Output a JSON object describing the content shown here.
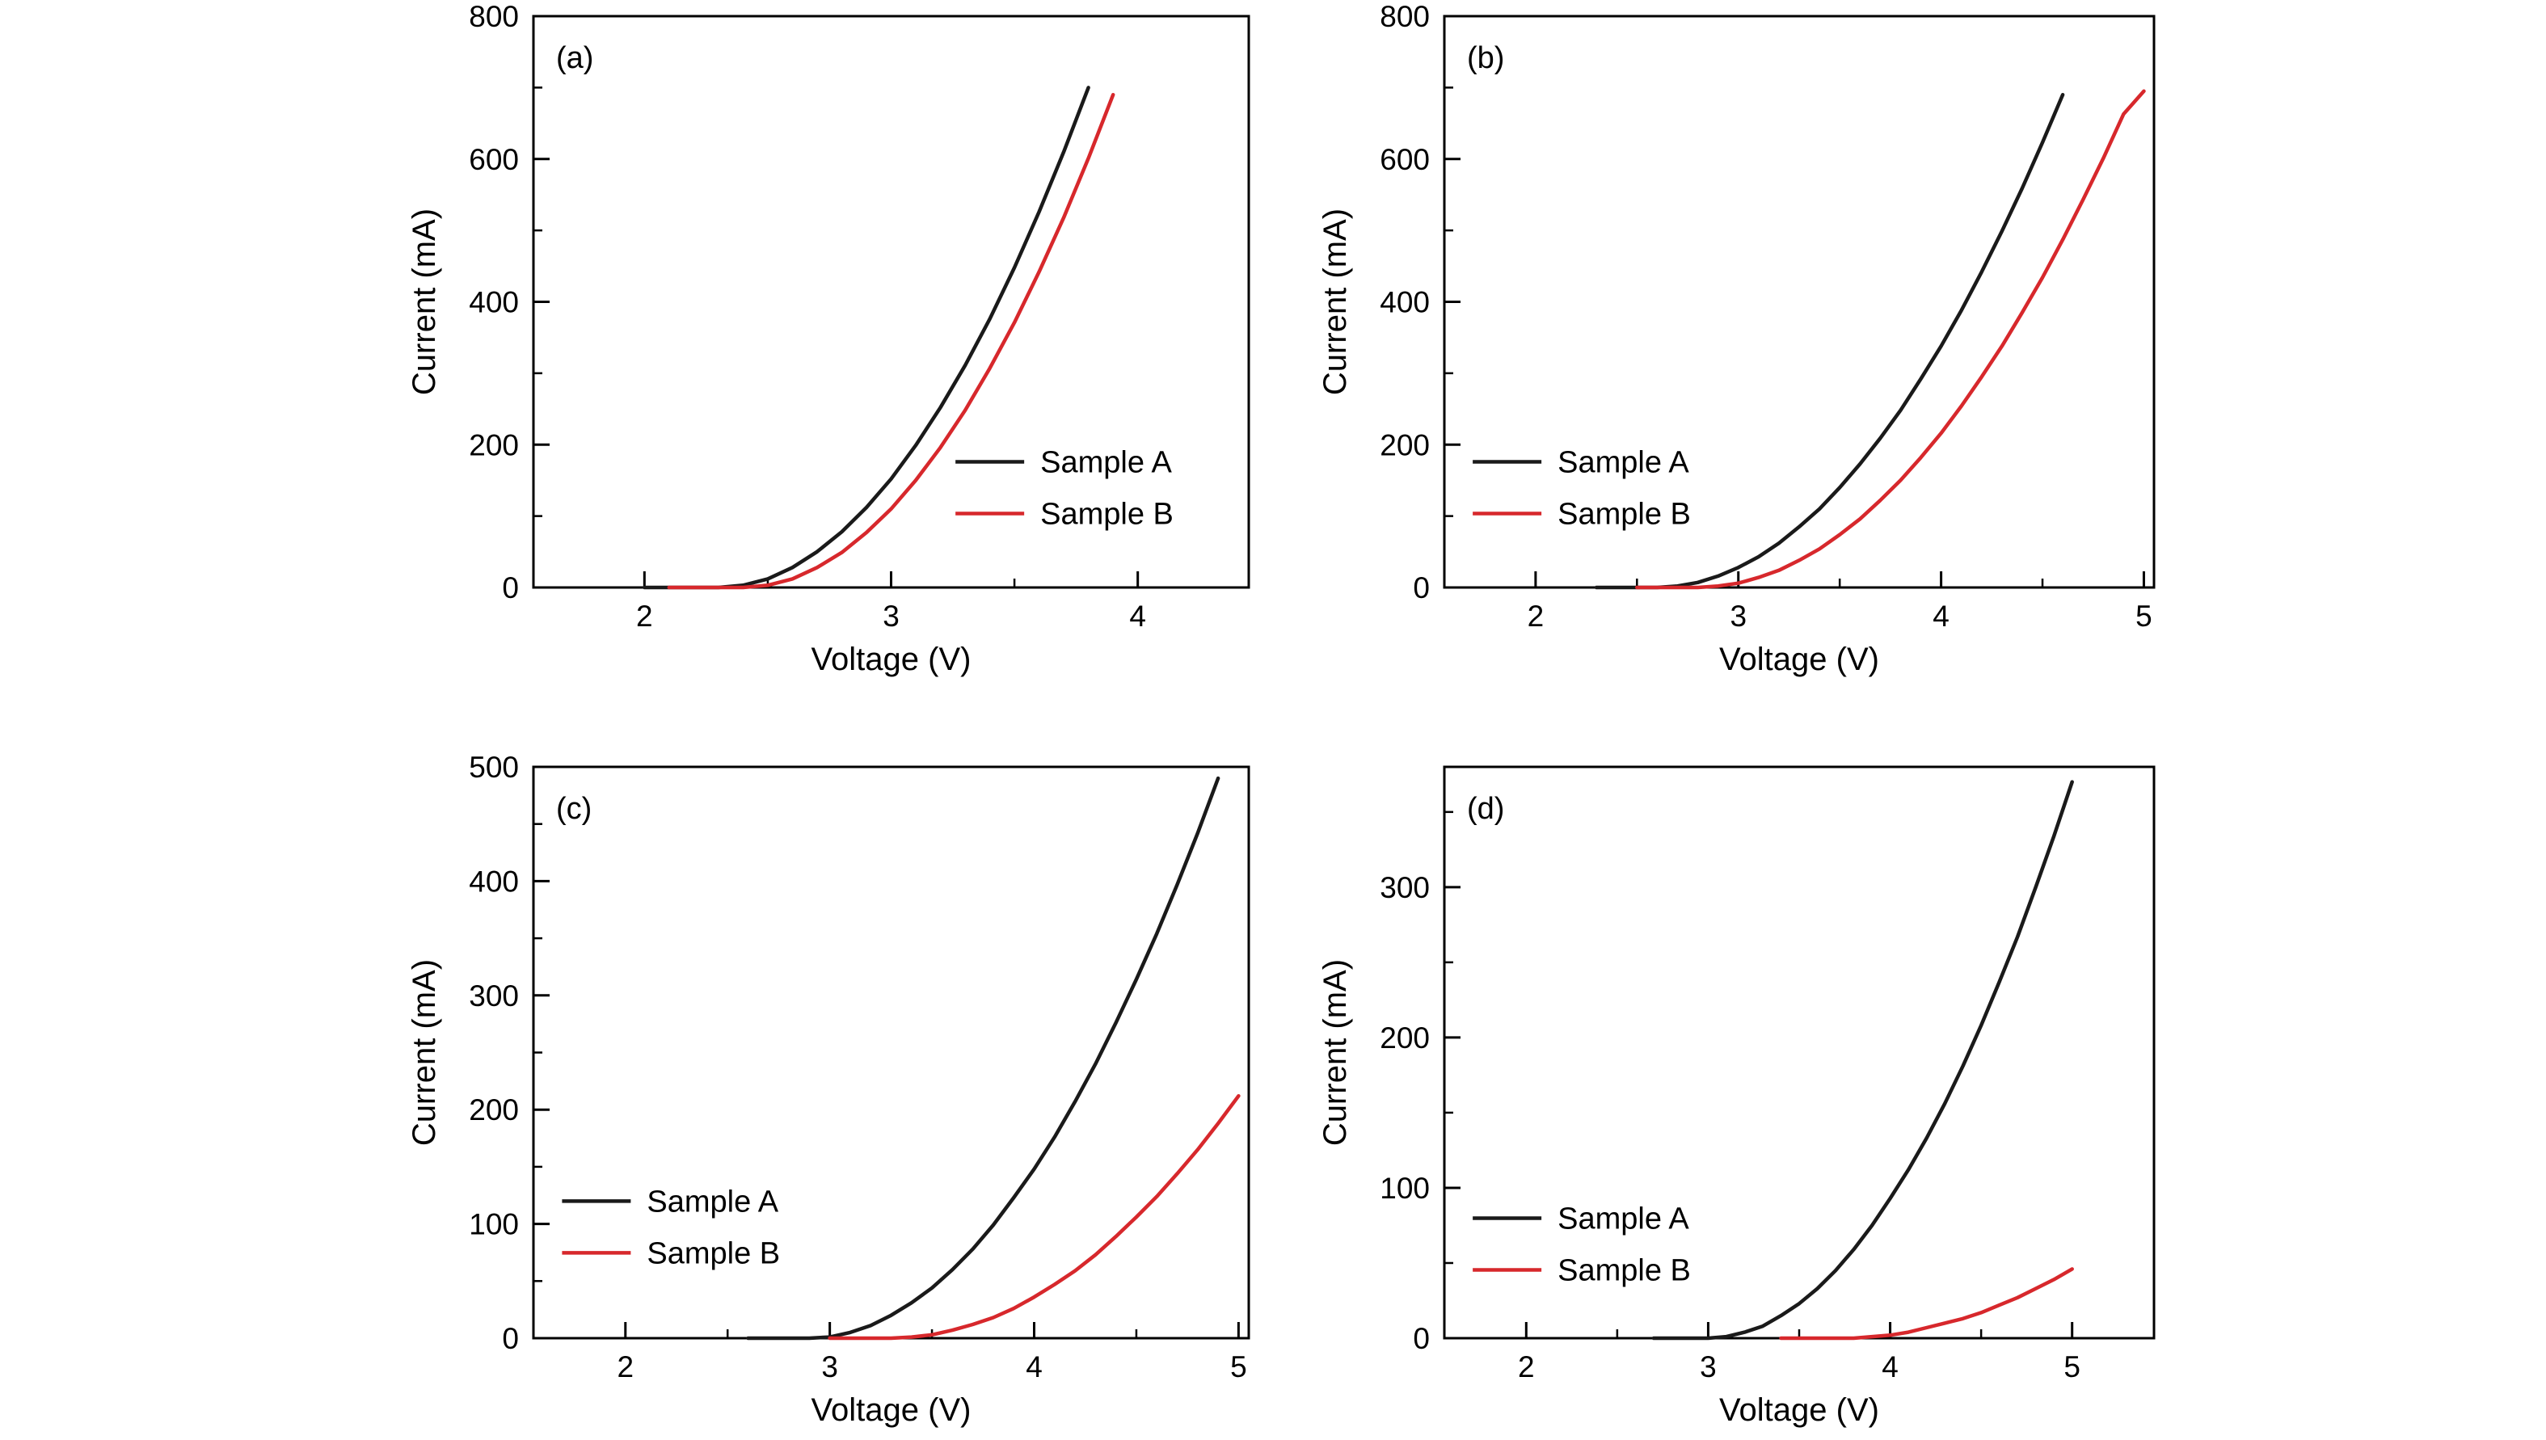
{
  "figure": {
    "background": "#ffffff",
    "axis_color": "#000000",
    "text_color": "#000000",
    "series_colors": {
      "sample_a": "#1a1a1a",
      "sample_b": "#d7282c"
    }
  },
  "chart_data": [
    {
      "type": "line",
      "panel_id": "a",
      "panel_label": "(a)",
      "xlabel": "Voltage (V)",
      "ylabel": "Current (mA)",
      "xlim": [
        1.55,
        4.45
      ],
      "ylim": [
        0,
        800
      ],
      "xticks": [
        2,
        3,
        4
      ],
      "yticks": [
        0,
        200,
        400,
        600,
        800
      ],
      "x_minor_step": 0.5,
      "y_minor_step": 100,
      "grid": false,
      "legend": {
        "position": "inside-right-lower",
        "x": 0.59,
        "y": 0.78
      },
      "series": [
        {
          "name": "Sample A",
          "color_key": "sample_a",
          "x0": 2.0,
          "dx": 0.1,
          "y": [
            0,
            0,
            0,
            0,
            3,
            12,
            28,
            50,
            78,
            112,
            152,
            199,
            252,
            311,
            376,
            448,
            526,
            610,
            700
          ]
        },
        {
          "name": "Sample B",
          "color_key": "sample_b",
          "x0": 2.1,
          "dx": 0.1,
          "y": [
            0,
            0,
            0,
            0,
            3,
            12,
            28,
            49,
            77,
            110,
            150,
            196,
            248,
            307,
            371,
            442,
            518,
            601,
            690
          ]
        }
      ]
    },
    {
      "type": "line",
      "panel_id": "b",
      "panel_label": "(b)",
      "xlabel": "Voltage (V)",
      "ylabel": "Current (mA)",
      "xlim": [
        1.55,
        5.05
      ],
      "ylim": [
        0,
        800
      ],
      "xticks": [
        2,
        3,
        4,
        5
      ],
      "yticks": [
        0,
        200,
        400,
        600,
        800
      ],
      "x_minor_step": 0.5,
      "y_minor_step": 100,
      "grid": false,
      "legend": {
        "position": "inside-left-lower",
        "x": 0.04,
        "y": 0.78
      },
      "series": [
        {
          "name": "Sample A",
          "color_key": "sample_a",
          "x0": 2.3,
          "dx": 0.1,
          "y": [
            0,
            0,
            0,
            0,
            2,
            7,
            16,
            28,
            43,
            62,
            85,
            110,
            140,
            173,
            209,
            248,
            292,
            338,
            388,
            442,
            499,
            559,
            623,
            690
          ]
        },
        {
          "name": "Sample B",
          "color_key": "sample_b",
          "x0": 2.5,
          "dx": 0.1,
          "y": [
            0,
            0,
            0,
            0,
            2,
            6,
            14,
            24,
            38,
            54,
            74,
            96,
            122,
            150,
            182,
            216,
            254,
            295,
            338,
            385,
            434,
            487,
            543,
            601,
            663,
            695
          ]
        }
      ]
    },
    {
      "type": "line",
      "panel_id": "c",
      "panel_label": "(c)",
      "xlabel": "Voltage (V)",
      "ylabel": "Current (mA)",
      "xlim": [
        1.55,
        5.05
      ],
      "ylim": [
        0,
        500
      ],
      "xticks": [
        2,
        3,
        4,
        5
      ],
      "yticks": [
        0,
        100,
        200,
        300,
        400,
        500
      ],
      "x_minor_step": 0.5,
      "y_minor_step": 50,
      "grid": false,
      "legend": {
        "position": "inside-left-lower",
        "x": 0.04,
        "y": 0.76
      },
      "series": [
        {
          "name": "Sample A",
          "color_key": "sample_a",
          "x0": 2.6,
          "dx": 0.1,
          "y": [
            0,
            0,
            0,
            0,
            1,
            5,
            11,
            20,
            31,
            44,
            60,
            78,
            99,
            123,
            148,
            176,
            207,
            240,
            276,
            314,
            354,
            397,
            442,
            490
          ]
        },
        {
          "name": "Sample B",
          "color_key": "sample_b",
          "x0": 3.0,
          "dx": 0.1,
          "y": [
            0,
            0,
            0,
            0,
            1,
            3,
            7,
            12,
            18,
            26,
            36,
            47,
            59,
            73,
            89,
            106,
            124,
            144,
            165,
            188,
            212
          ]
        }
      ]
    },
    {
      "type": "line",
      "panel_id": "d",
      "panel_label": "(d)",
      "xlabel": "Voltage (V)",
      "ylabel": "Current (mA)",
      "xlim": [
        1.55,
        5.45
      ],
      "ylim": [
        0,
        380
      ],
      "xticks": [
        2,
        3,
        4,
        5
      ],
      "yticks": [
        0,
        100,
        200,
        300
      ],
      "x_minor_step": 0.5,
      "y_minor_step": 50,
      "grid": false,
      "legend": {
        "position": "inside-left-lower",
        "x": 0.04,
        "y": 0.79
      },
      "series": [
        {
          "name": "Sample A",
          "color_key": "sample_a",
          "x0": 2.7,
          "dx": 0.1,
          "y": [
            0,
            0,
            0,
            0,
            1,
            4,
            8,
            15,
            23,
            33,
            45,
            59,
            75,
            93,
            112,
            133,
            156,
            181,
            208,
            237,
            267,
            300,
            334,
            370
          ]
        },
        {
          "name": "Sample B",
          "color_key": "sample_b",
          "x0": 3.4,
          "dx": 0.1,
          "y": [
            0,
            0,
            0,
            0,
            0,
            1,
            2,
            4,
            7,
            10,
            13,
            17,
            22,
            27,
            33,
            39,
            46
          ]
        }
      ]
    }
  ]
}
